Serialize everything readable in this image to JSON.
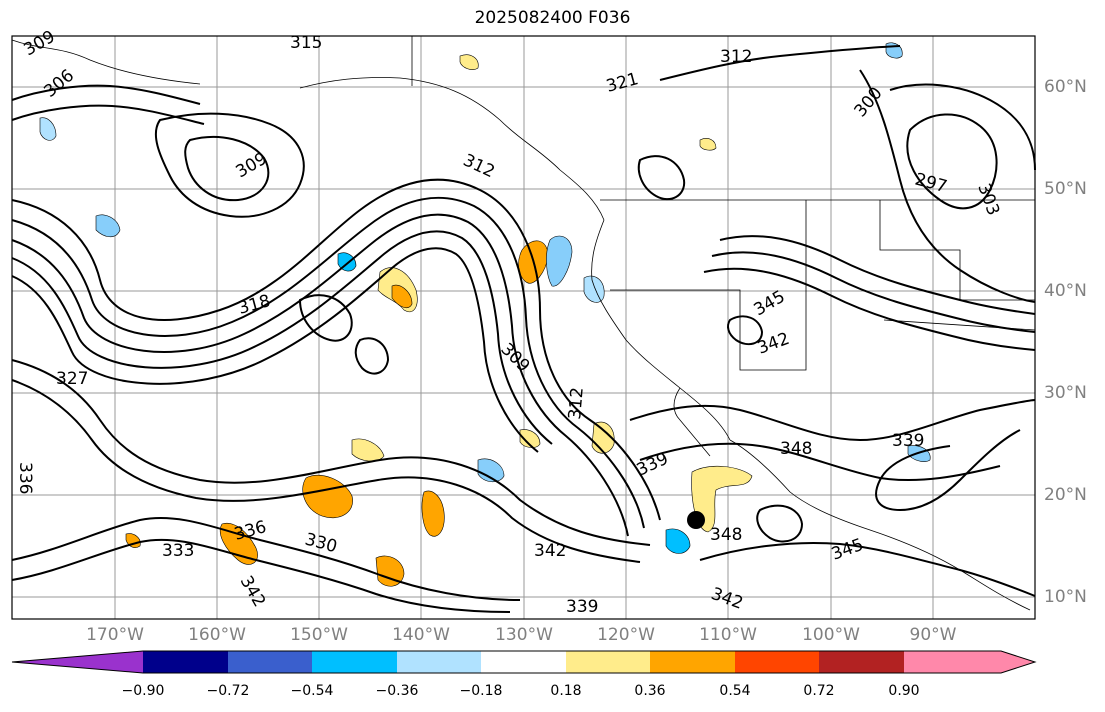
{
  "title": "2025082400 F036",
  "lon_labels": [
    "170°W",
    "160°W",
    "150°W",
    "140°W",
    "130°W",
    "120°W",
    "110°W",
    "100°W",
    "90°W"
  ],
  "lat_labels": [
    "60°N",
    "50°N",
    "40°N",
    "30°N",
    "20°N",
    "10°N"
  ],
  "colorbar": {
    "ticks": [
      "−0.90",
      "−0.72",
      "−0.54",
      "−0.36",
      "−0.18",
      "0.18",
      "0.36",
      "0.54",
      "0.72",
      "0.90"
    ],
    "colors": [
      "#9a32cd",
      "#00008b",
      "#3a5fcd",
      "#00bfff",
      "#b0e2ff",
      "#ffffff",
      "#ffec8b",
      "#ffa500",
      "#ff4500",
      "#b22222",
      "#ff88aa"
    ]
  },
  "contour_labels": [
    {
      "text": "315"
    },
    {
      "text": "309"
    },
    {
      "text": "306"
    },
    {
      "text": "312"
    },
    {
      "text": "321"
    },
    {
      "text": "309"
    },
    {
      "text": "312"
    },
    {
      "text": "318"
    },
    {
      "text": "327"
    },
    {
      "text": "309"
    },
    {
      "text": "312"
    },
    {
      "text": "300"
    },
    {
      "text": "297"
    },
    {
      "text": "303"
    },
    {
      "text": "345"
    },
    {
      "text": "342"
    },
    {
      "text": "348"
    },
    {
      "text": "339"
    },
    {
      "text": "339"
    },
    {
      "text": "348"
    },
    {
      "text": "342"
    },
    {
      "text": "345"
    },
    {
      "text": "333"
    },
    {
      "text": "330"
    },
    {
      "text": "342"
    },
    {
      "text": "339"
    },
    {
      "text": "336"
    },
    {
      "text": "336"
    },
    {
      "text": "342"
    }
  ]
}
